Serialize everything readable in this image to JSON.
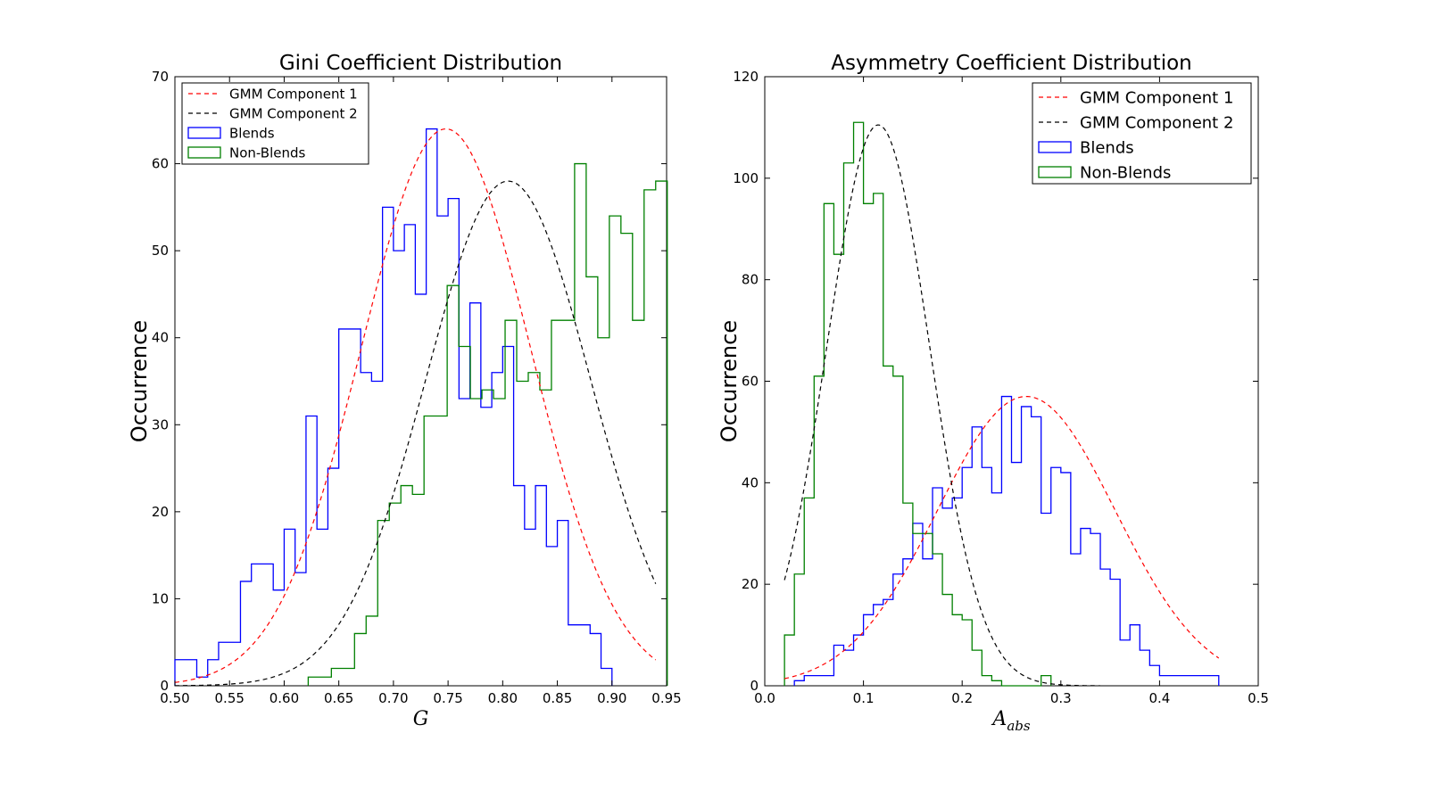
{
  "chart_data": [
    {
      "type": "histogram",
      "title": "Gini Coefficient Distribution",
      "xlabel": "G",
      "ylabel": "Occurrence",
      "xlim": [
        0.5,
        0.95
      ],
      "ylim": [
        0,
        70
      ],
      "xticks": [
        "0.50",
        "0.55",
        "0.60",
        "0.65",
        "0.70",
        "0.75",
        "0.80",
        "0.85",
        "0.90",
        "0.95"
      ],
      "yticks": [
        "0",
        "10",
        "20",
        "30",
        "40",
        "50",
        "60",
        "70"
      ],
      "legend_position": "top-left",
      "legend": [
        "GMM Component 1",
        "GMM Component 2",
        "Blends",
        "Non-Blends"
      ],
      "hist_series": [
        {
          "name": "Blends",
          "color": "#0000ff",
          "bin_start": 0.5,
          "bin_width": 0.01,
          "values": [
            3,
            3,
            1,
            3,
            5,
            5,
            12,
            14,
            14,
            11,
            18,
            13,
            31,
            18,
            25,
            41,
            41,
            36,
            35,
            55,
            50,
            53,
            45,
            64,
            54,
            56,
            33,
            44,
            32,
            36,
            39,
            23,
            18,
            23,
            16,
            19,
            7,
            7,
            6,
            2
          ]
        },
        {
          "name": "Non-Blends",
          "color": "#008000",
          "bin_start": 0.622,
          "bin_width": 0.0106,
          "values": [
            1,
            1,
            2,
            2,
            6,
            8,
            19,
            21,
            23,
            22,
            31,
            31,
            46,
            39,
            33,
            34,
            33,
            42,
            35,
            36,
            34,
            42,
            42,
            60,
            47,
            40,
            54,
            52,
            42,
            57,
            58
          ]
        }
      ],
      "curve_series": [
        {
          "name": "GMM Component 1",
          "color": "#ff0000",
          "amplitude": 64,
          "mean": 0.748,
          "sigma": 0.0775,
          "x_range": [
            0.5,
            0.94
          ]
        },
        {
          "name": "GMM Component 2",
          "color": "#000000",
          "amplitude": 58,
          "mean": 0.805,
          "sigma": 0.0755,
          "x_range": [
            0.5,
            0.94
          ]
        }
      ]
    },
    {
      "type": "histogram",
      "title": "Asymmetry Coefficient Distribution",
      "xlabel": "A",
      "xlabel_subscript": "abs",
      "ylabel": "Occurrence",
      "xlim": [
        0.0,
        0.5
      ],
      "ylim": [
        0,
        120
      ],
      "xticks": [
        "0.0",
        "0.1",
        "0.2",
        "0.3",
        "0.4",
        "0.5"
      ],
      "yticks": [
        "0",
        "20",
        "40",
        "60",
        "80",
        "100",
        "120"
      ],
      "legend_position": "top-right",
      "legend": [
        "GMM Component 1",
        "GMM Component 2",
        "Blends",
        "Non-Blends"
      ],
      "hist_series": [
        {
          "name": "Blends",
          "color": "#0000ff",
          "bin_start": 0.03,
          "bin_width": 0.01,
          "values": [
            1,
            2,
            2,
            2,
            8,
            7,
            10,
            14,
            16,
            17,
            22,
            25,
            32,
            25,
            39,
            35,
            37,
            43,
            51,
            43,
            38,
            57,
            44,
            55,
            53,
            34,
            43,
            42,
            26,
            31,
            30,
            23,
            21,
            9,
            12,
            7,
            4,
            2,
            2,
            2,
            2,
            2,
            2
          ]
        },
        {
          "name": "Non-Blends",
          "color": "#008000",
          "bin_start": 0.02,
          "bin_width": 0.01,
          "values": [
            10,
            22,
            37,
            61,
            95,
            85,
            103,
            111,
            95,
            97,
            63,
            61,
            36,
            30,
            30,
            26,
            18,
            14,
            13,
            7,
            2,
            1,
            0,
            0,
            0,
            0,
            2
          ]
        }
      ],
      "curve_series": [
        {
          "name": "GMM Component 1",
          "color": "#ff0000",
          "amplitude": 57,
          "mean": 0.265,
          "sigma": 0.09,
          "x_range": [
            0.02,
            0.46
          ]
        },
        {
          "name": "GMM Component 2",
          "color": "#000000",
          "amplitude": 110.5,
          "mean": 0.115,
          "sigma": 0.052,
          "x_range": [
            0.02,
            0.34
          ]
        }
      ]
    }
  ]
}
